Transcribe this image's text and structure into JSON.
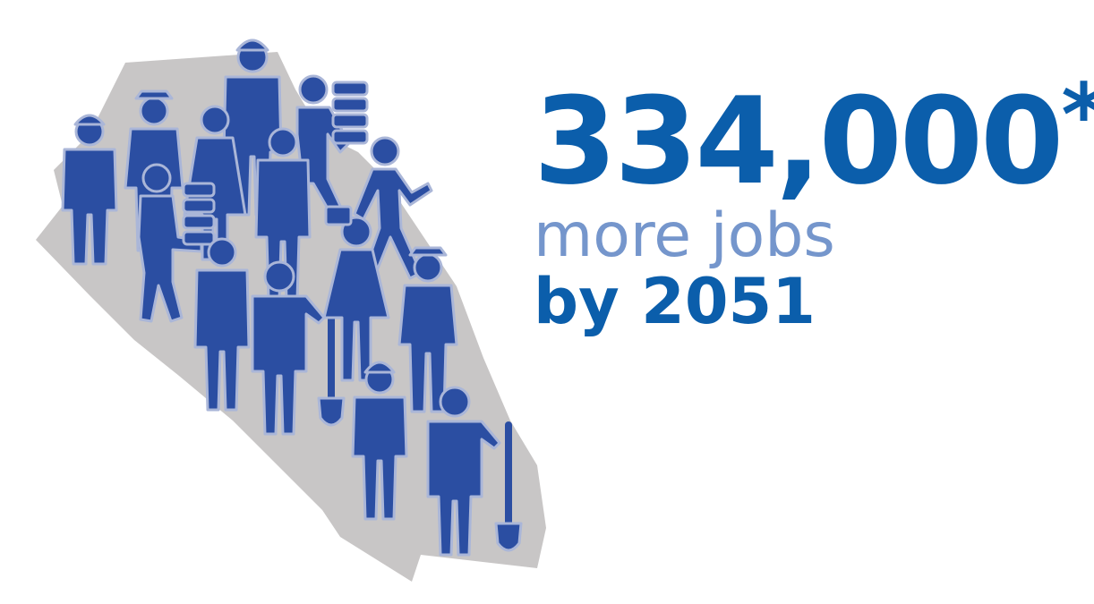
{
  "headline": {
    "number": "334,000",
    "asterisk": "*",
    "line2": "more jobs",
    "line3": "by 2051"
  },
  "colors": {
    "primary_blue": "#0b5eab",
    "light_blue": "#7596cc",
    "figure_blue": "#2b4ea2",
    "map_gray": "#c8c6c6"
  },
  "icons": {
    "illustration": "workforce-figures-on-region-map"
  }
}
